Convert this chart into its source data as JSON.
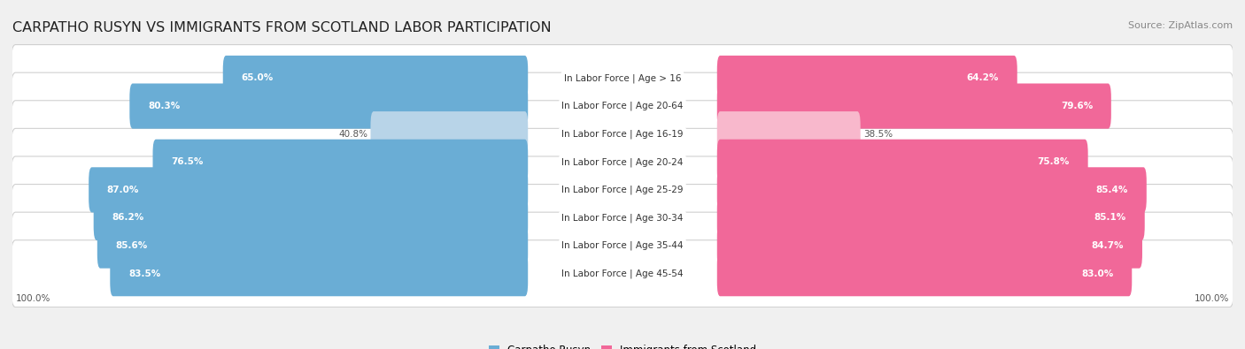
{
  "title": "CARPATHO RUSYN VS IMMIGRANTS FROM SCOTLAND LABOR PARTICIPATION",
  "source": "Source: ZipAtlas.com",
  "categories": [
    "In Labor Force | Age > 16",
    "In Labor Force | Age 20-64",
    "In Labor Force | Age 16-19",
    "In Labor Force | Age 20-24",
    "In Labor Force | Age 25-29",
    "In Labor Force | Age 30-34",
    "In Labor Force | Age 35-44",
    "In Labor Force | Age 45-54"
  ],
  "carpatho_values": [
    65.0,
    80.3,
    40.8,
    76.5,
    87.0,
    86.2,
    85.6,
    83.5
  ],
  "scotland_values": [
    64.2,
    79.6,
    38.5,
    75.8,
    85.4,
    85.1,
    84.7,
    83.0
  ],
  "carpatho_color": "#6aadd5",
  "carpatho_color_light": "#b8d4e8",
  "scotland_color": "#f16899",
  "scotland_color_light": "#f8b8cc",
  "bg_color": "#f0f0f0",
  "row_bg_color": "#ffffff",
  "title_fontsize": 11.5,
  "source_fontsize": 8,
  "label_fontsize": 7.5,
  "value_fontsize": 7.5,
  "legend_fontsize": 8.5
}
